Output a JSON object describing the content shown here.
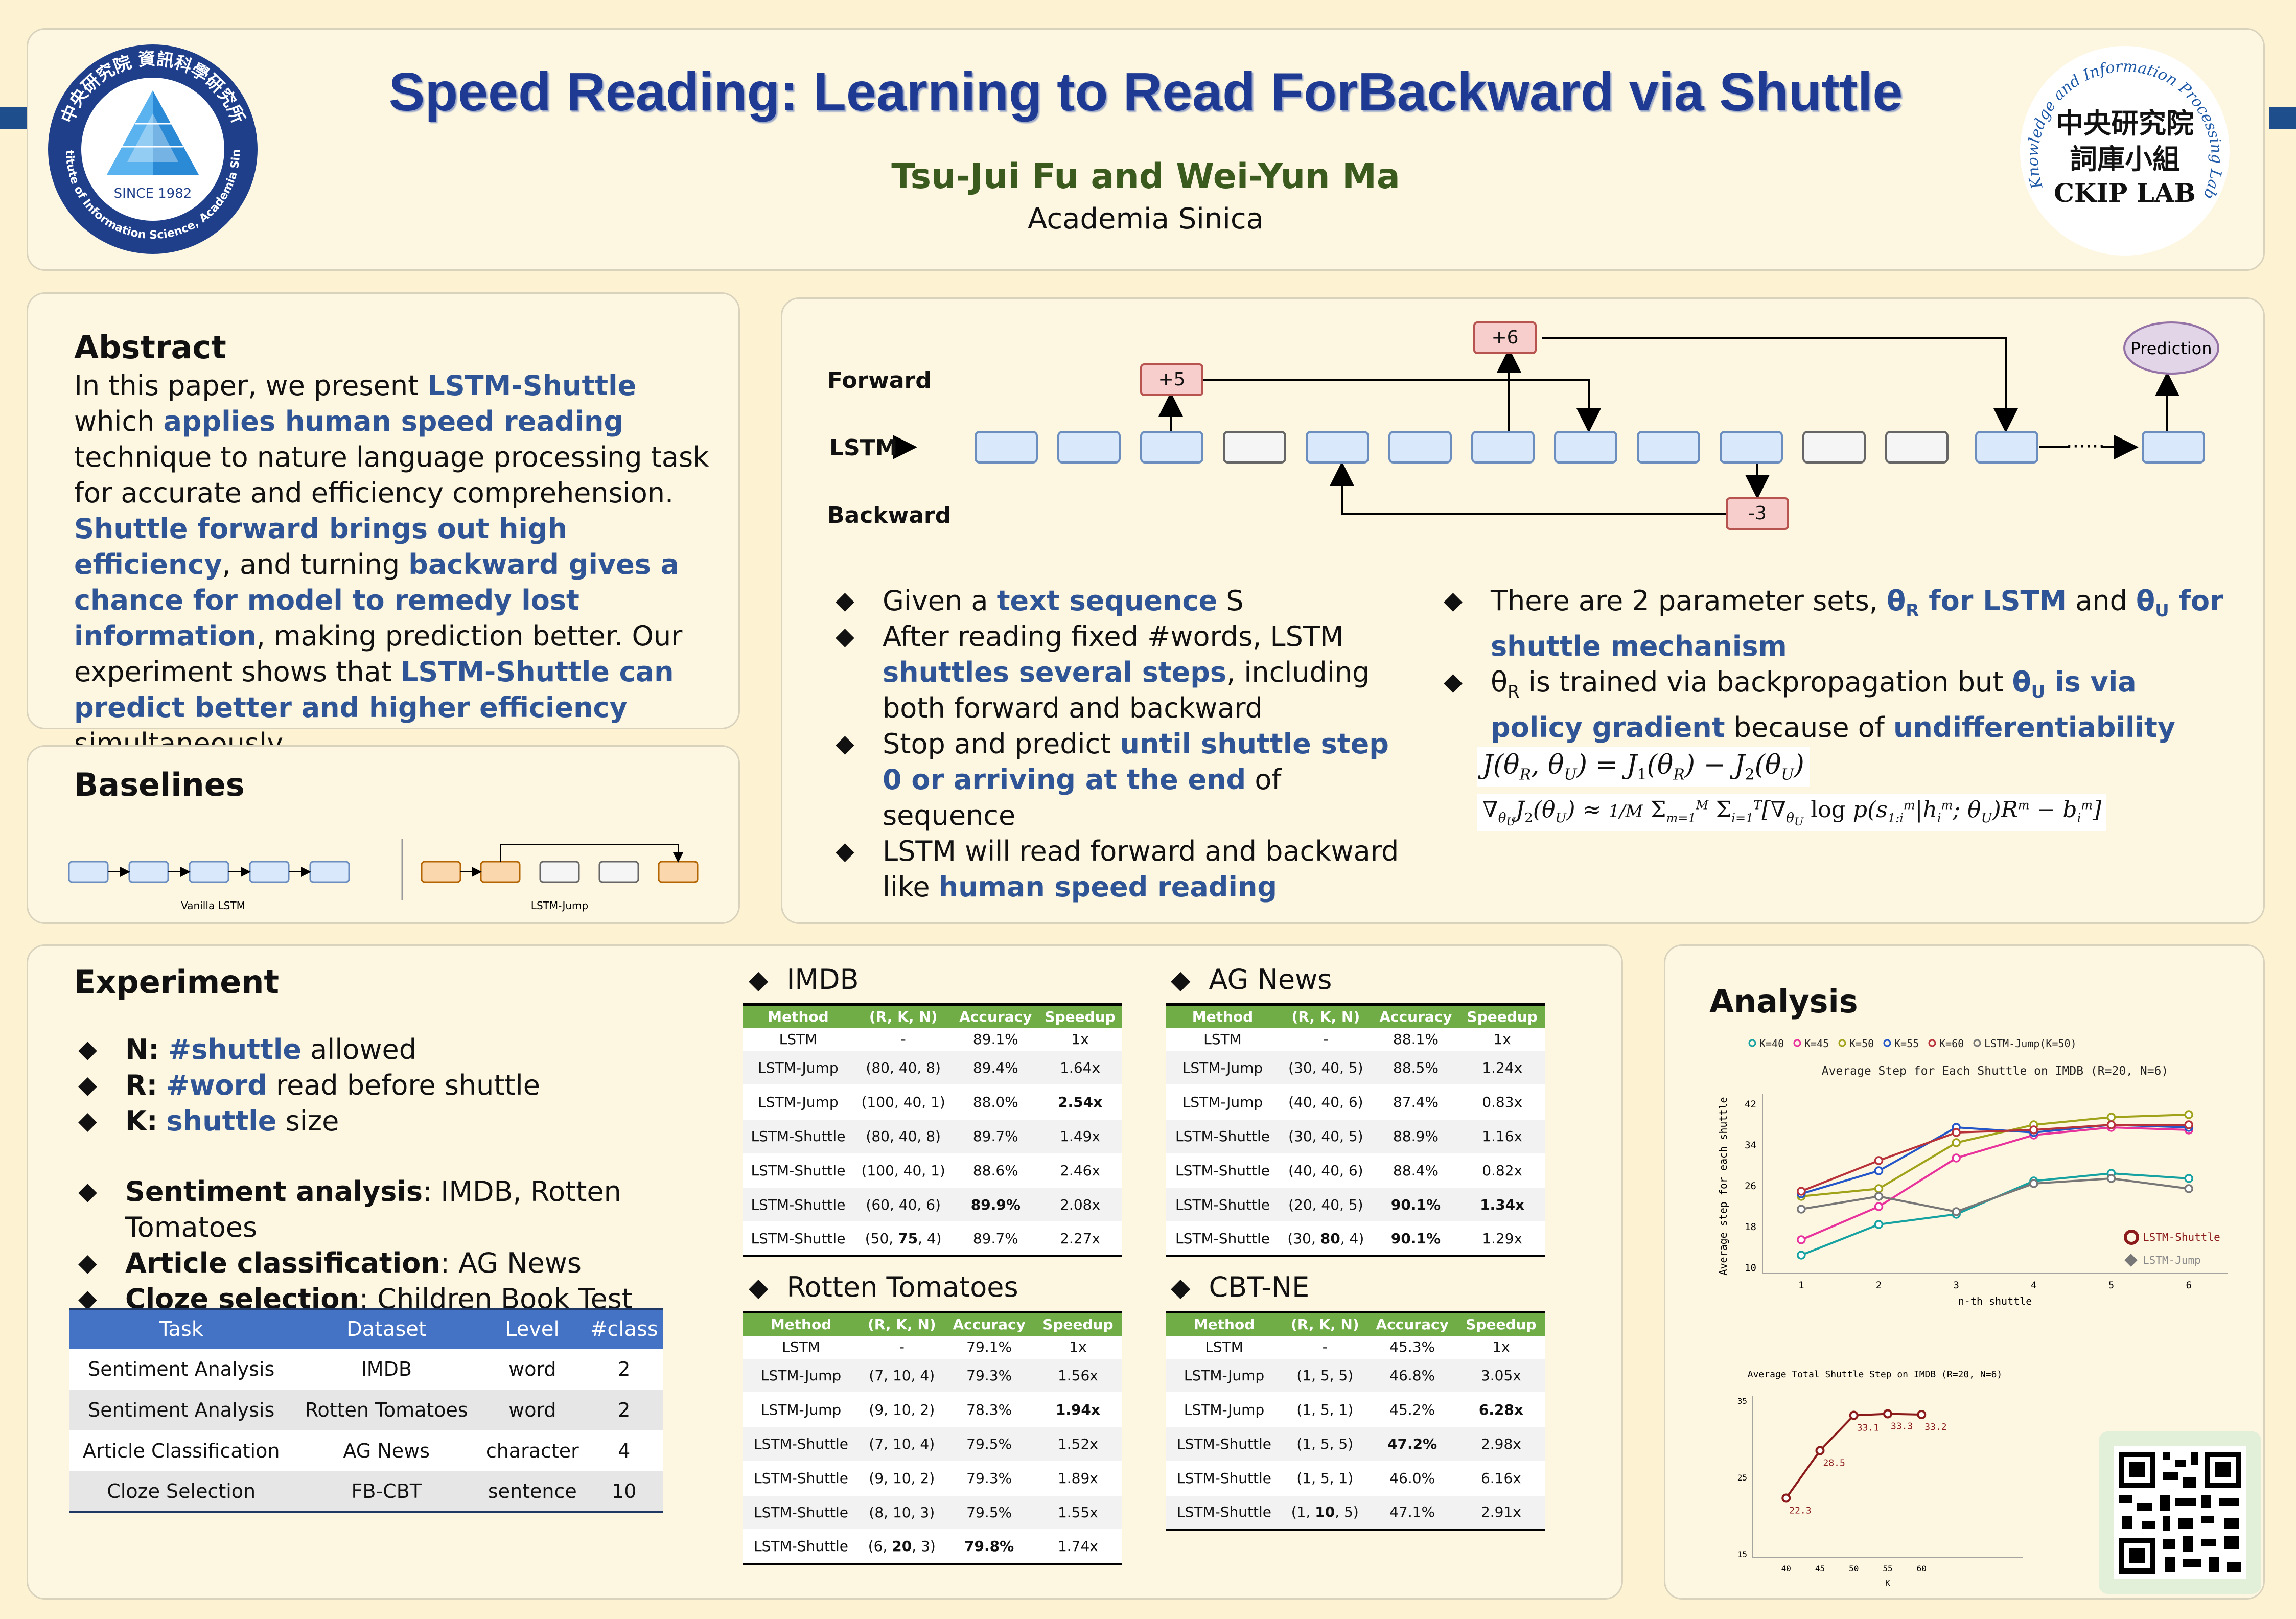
{
  "header": {
    "title": "Speed Reading: Learning to Read ForBackward via Shuttle",
    "authors": "Tsu-Jui Fu and Wei-Yun Ma",
    "affiliation": "Academia Sinica",
    "left_logo": {
      "top_text": "中央研究院 資訊科學研究所",
      "since": "SINCE 1982",
      "bottom_text": "Institute of Information Science, Academia Sinica"
    },
    "right_logo": {
      "line1": "中央研究院",
      "line2": "詞庫小組",
      "line3": "CKIP LAB",
      "ring": "Chinese Knowledge and Information Processing Laboratory"
    }
  },
  "abstract": {
    "heading": "Abstract",
    "p1": "In this paper, we present ",
    "h1": "LSTM-Shuttle",
    "p2": " which ",
    "h2": "applies human speed reading",
    "p3": " technique to nature language processing task for accurate and efficiency comprehension. ",
    "h3": "Shuttle forward brings out high efficiency",
    "p4": ", and turning ",
    "h4": "backward gives a chance for model to remedy lost information",
    "p5": ", making prediction better. Our experiment shows that ",
    "h5": "LSTM-Shuttle can predict better and higher efficiency",
    "p6": " simultaneously."
  },
  "baselines": {
    "heading": "Baselines",
    "vanilla_label": "Vanilla LSTM",
    "jump_label": "LSTM-Jump"
  },
  "diagram": {
    "forward": "Forward",
    "lstm": "LSTM",
    "backward": "Backward",
    "plus5": "+5",
    "plus6": "+6",
    "minus3": "-3",
    "prediction": "Prediction",
    "dots": "······"
  },
  "method": {
    "left_bullets": [
      {
        "a": "Given a ",
        "b": "text sequence",
        "c": " S"
      },
      {
        "a": "After reading fixed #words, LSTM ",
        "b": "shuttles several steps",
        "c": ", including both forward and backward"
      },
      {
        "a": "Stop and predict ",
        "b": "until shuttle step 0 or arriving at the end",
        "c": " of sequence"
      },
      {
        "a": "LSTM will read forward and backward like ",
        "b": "human speed reading",
        "c": ""
      }
    ],
    "right_b1": {
      "a": "There are 2 parameter sets, ",
      "t1": "θ",
      "s1": "R",
      "b": " for LSTM",
      "c": " and ",
      "t2": "θ",
      "s2": "U",
      "d": " for shuttle mechanism"
    },
    "right_b2": {
      "t1": "θ",
      "s1": "R",
      "a": " is trained via backpropagation but ",
      "t2": "θ",
      "s2": "U",
      "b": " is via policy gradient",
      "c": " because of ",
      "d": "undifferentiability"
    }
  },
  "experiment": {
    "heading": "Experiment",
    "settings": [
      {
        "k": "N:",
        "v": "#shuttle",
        "rest": " allowed"
      },
      {
        "k": "R:",
        "v": "#word",
        "rest": " read before shuttle"
      },
      {
        "k": "K:",
        "v": "shuttle",
        "rest": " size"
      }
    ],
    "tasks": [
      {
        "k": "Sentiment analysis",
        "rest": ": IMDB, Rotten Tomatoes"
      },
      {
        "k": "Article classification",
        "rest": ": AG News"
      },
      {
        "k": "Cloze selection",
        "rest": ": Children Book Test"
      }
    ],
    "task_table": {
      "headers": [
        "Task",
        "Dataset",
        "Level",
        "#class"
      ],
      "rows": [
        [
          "Sentiment Analysis",
          "IMDB",
          "word",
          "2"
        ],
        [
          "Sentiment Analysis",
          "Rotten Tomatoes",
          "word",
          "2"
        ],
        [
          "Article Classification",
          "AG News",
          "character",
          "4"
        ],
        [
          "Cloze Selection",
          "FB-CBT",
          "sentence",
          "10"
        ]
      ]
    }
  },
  "results": {
    "headers": [
      "Method",
      "(R, K, N)",
      "Accuracy",
      "Speedup"
    ],
    "imdb": {
      "title": "IMDB",
      "rows": [
        [
          "LSTM",
          "-",
          "89.1%",
          "1x"
        ],
        [
          "LSTM-Jump",
          "(80, 40, 8)",
          "89.4%",
          "1.64x"
        ],
        [
          "LSTM-Jump",
          "(100, 40, 1)",
          "88.0%",
          "2.54x"
        ],
        [
          "LSTM-Shuttle",
          "(80, 40, 8)",
          "89.7%",
          "1.49x"
        ],
        [
          "LSTM-Shuttle",
          "(100, 40, 1)",
          "88.6%",
          "2.46x"
        ],
        [
          "LSTM-Shuttle",
          "(60, 40, 6)",
          "89.9%",
          "2.08x"
        ],
        [
          "LSTM-Shuttle",
          "(50, 75, 4)",
          "89.7%",
          "2.27x"
        ]
      ]
    },
    "ag": {
      "title": "AG News",
      "rows": [
        [
          "LSTM",
          "-",
          "88.1%",
          "1x"
        ],
        [
          "LSTM-Jump",
          "(30, 40, 5)",
          "88.5%",
          "1.24x"
        ],
        [
          "LSTM-Jump",
          "(40, 40, 6)",
          "87.4%",
          "0.83x"
        ],
        [
          "LSTM-Shuttle",
          "(30, 40, 5)",
          "88.9%",
          "1.16x"
        ],
        [
          "LSTM-Shuttle",
          "(40, 40, 6)",
          "88.4%",
          "0.82x"
        ],
        [
          "LSTM-Shuttle",
          "(20, 40, 5)",
          "90.1%",
          "1.34x"
        ],
        [
          "LSTM-Shuttle",
          "(30, 80, 4)",
          "90.1%",
          "1.29x"
        ]
      ]
    },
    "rt": {
      "title": "Rotten Tomatoes",
      "rows": [
        [
          "LSTM",
          "-",
          "79.1%",
          "1x"
        ],
        [
          "LSTM-Jump",
          "(7, 10, 4)",
          "79.3%",
          "1.56x"
        ],
        [
          "LSTM-Jump",
          "(9, 10, 2)",
          "78.3%",
          "1.94x"
        ],
        [
          "LSTM-Shuttle",
          "(7, 10, 4)",
          "79.5%",
          "1.52x"
        ],
        [
          "LSTM-Shuttle",
          "(9, 10, 2)",
          "79.3%",
          "1.89x"
        ],
        [
          "LSTM-Shuttle",
          "(8, 10, 3)",
          "79.5%",
          "1.55x"
        ],
        [
          "LSTM-Shuttle",
          "(6, 20, 3)",
          "79.8%",
          "1.74x"
        ]
      ]
    },
    "cbt": {
      "title": "CBT-NE",
      "rows": [
        [
          "LSTM",
          "-",
          "45.3%",
          "1x"
        ],
        [
          "LSTM-Jump",
          "(1, 5, 5)",
          "46.8%",
          "3.05x"
        ],
        [
          "LSTM-Jump",
          "(1, 5, 1)",
          "45.2%",
          "6.28x"
        ],
        [
          "LSTM-Shuttle",
          "(1, 5, 5)",
          "47.2%",
          "2.98x"
        ],
        [
          "LSTM-Shuttle",
          "(1, 5, 1)",
          "46.0%",
          "6.16x"
        ],
        [
          "LSTM-Shuttle",
          "(1, 10, 5)",
          "47.1%",
          "2.91x"
        ]
      ]
    }
  },
  "analysis": {
    "heading": "Analysis",
    "chart1": {
      "type": "line",
      "title": "Average Step for Each Shuttle on IMDB (R=20, N=6)",
      "xlabel": "n-th shuttle",
      "ylabel": "Average step for each shuttle",
      "x": [
        1,
        2,
        3,
        4,
        5,
        6
      ],
      "yticks": [
        10,
        18,
        26,
        34,
        42
      ],
      "ylim": [
        10,
        42
      ],
      "legend_top": [
        "K=40",
        "K=45",
        "K=50",
        "K=55",
        "K=60",
        "LSTM-Jump(K=50)"
      ],
      "legend_bottom": [
        "LSTM-Shuttle",
        "LSTM-Jump"
      ],
      "series": [
        {
          "name": "K=40",
          "color": "#17a2a2",
          "values": [
            12.5,
            18.5,
            20.5,
            27.0,
            28.5,
            27.5
          ]
        },
        {
          "name": "K=45",
          "color": "#e8329c",
          "values": [
            15.5,
            22.0,
            31.5,
            36.0,
            37.5,
            37.0
          ]
        },
        {
          "name": "K=50",
          "color": "#a0a21a",
          "values": [
            24.0,
            25.5,
            34.5,
            38.0,
            39.5,
            40.0
          ]
        },
        {
          "name": "K=55",
          "color": "#2357c9",
          "values": [
            24.5,
            29.0,
            37.5,
            36.5,
            38.0,
            37.5
          ]
        },
        {
          "name": "K=60",
          "color": "#b8323a",
          "values": [
            25.0,
            31.0,
            36.5,
            37.0,
            38.0,
            38.0
          ]
        },
        {
          "name": "LSTM-Jump(K=50)",
          "color": "#777777",
          "values": [
            21.5,
            24.0,
            21.0,
            26.5,
            27.5,
            25.5
          ]
        }
      ]
    },
    "chart2": {
      "type": "line",
      "title": "Average Total Shuttle Step on IMDB (R=20, N=6)",
      "xlabel": "K",
      "x": [
        40,
        45,
        50,
        55,
        60
      ],
      "values": [
        22.3,
        28.5,
        33.1,
        33.3,
        33.2
      ],
      "labels": [
        "22.3",
        "28.5",
        "33.1",
        "33.3",
        "33.2"
      ],
      "yticks": [
        15,
        25,
        35
      ],
      "ylim": [
        15,
        35
      ],
      "color": "#8b1a1a"
    }
  },
  "colors": {
    "title_blue": "#1f3a93",
    "highlight_blue": "#2f5597",
    "author_green": "#3b5a1e",
    "table_green": "#70ad47",
    "table_blue": "#4472c4"
  }
}
